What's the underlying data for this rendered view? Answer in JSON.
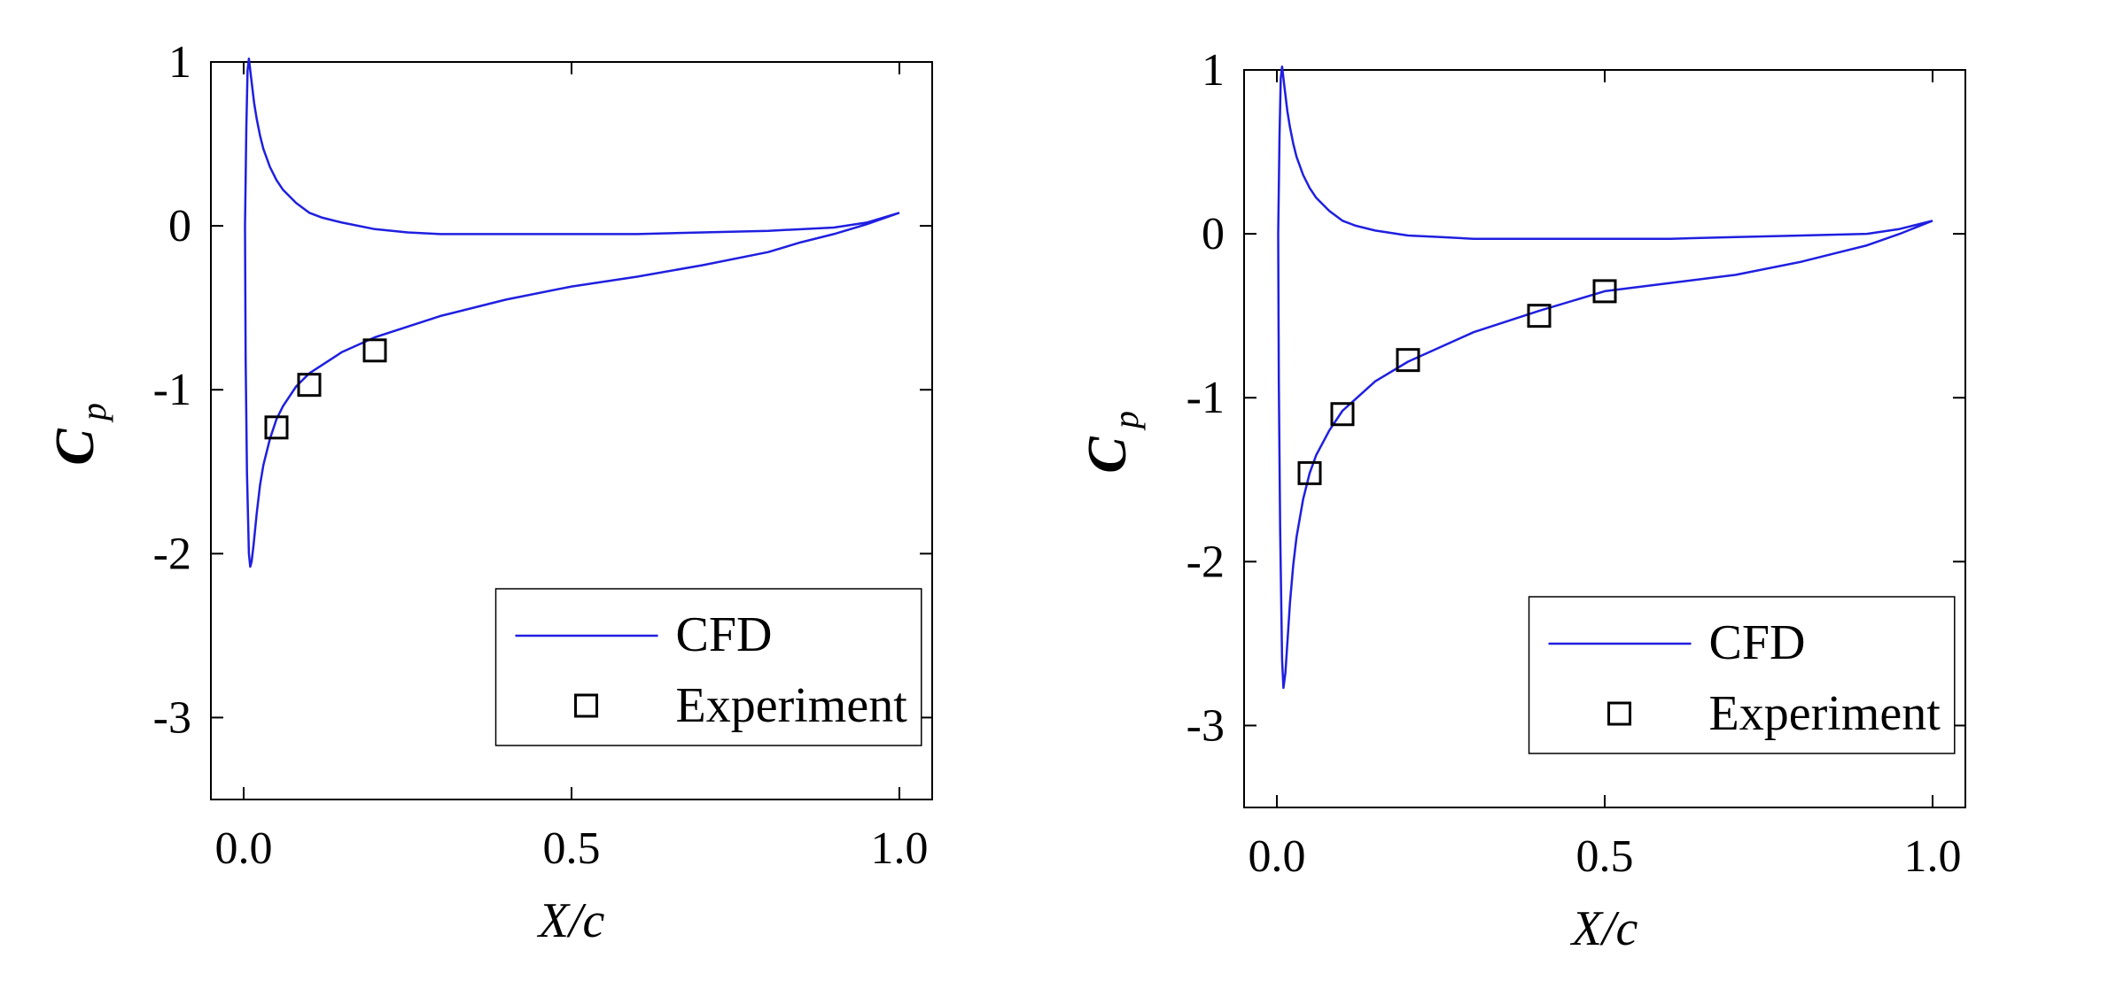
{
  "chart_data": [
    {
      "type": "line",
      "title": "",
      "xlabel": "X/c",
      "ylabel_main": "C",
      "ylabel_sub": "p",
      "xlim": [
        -0.05,
        1.05
      ],
      "ylim": [
        -3.5,
        1
      ],
      "xticks": [
        0.0,
        0.5,
        1.0
      ],
      "xtick_labels": [
        "0.0",
        "0.5",
        "1.0"
      ],
      "yticks": [
        1,
        0,
        -1,
        -2,
        -3
      ],
      "ytick_labels": [
        "1",
        "0",
        "-1",
        "-2",
        "-3"
      ],
      "legend": {
        "position": "bottom-right",
        "entries": [
          "CFD",
          "Experiment"
        ]
      },
      "series": [
        {
          "name": "CFD",
          "style": "line",
          "color": "#1f1fe0",
          "x": [
            1.0,
            0.95,
            0.9,
            0.85,
            0.8,
            0.7,
            0.6,
            0.5,
            0.4,
            0.3,
            0.2,
            0.15,
            0.1,
            0.08,
            0.06,
            0.05,
            0.04,
            0.03,
            0.025,
            0.02,
            0.015,
            0.012,
            0.01,
            0.008,
            0.005,
            0.003,
            0.002,
            0.004,
            0.006,
            0.008,
            0.01,
            0.013,
            0.016,
            0.02,
            0.025,
            0.03,
            0.04,
            0.05,
            0.06,
            0.08,
            0.1,
            0.12,
            0.15,
            0.2,
            0.25,
            0.3,
            0.35,
            0.4,
            0.5,
            0.6,
            0.7,
            0.8,
            0.9,
            0.95,
            1.0
          ],
          "y": [
            0.08,
            0.01,
            -0.05,
            -0.1,
            -0.16,
            -0.24,
            -0.31,
            -0.37,
            -0.45,
            -0.55,
            -0.68,
            -0.77,
            -0.9,
            -0.98,
            -1.1,
            -1.18,
            -1.3,
            -1.46,
            -1.58,
            -1.75,
            -1.95,
            -2.05,
            -2.08,
            -2.0,
            -1.5,
            -0.8,
            0.0,
            0.6,
            0.95,
            1.02,
            0.95,
            0.85,
            0.75,
            0.65,
            0.55,
            0.47,
            0.36,
            0.28,
            0.22,
            0.14,
            0.08,
            0.05,
            0.02,
            -0.02,
            -0.04,
            -0.05,
            -0.05,
            -0.05,
            -0.05,
            -0.05,
            -0.04,
            -0.03,
            -0.01,
            0.02,
            0.08
          ]
        },
        {
          "name": "Experiment",
          "style": "marker",
          "marker": "square",
          "x": [
            0.05,
            0.1,
            0.2
          ],
          "y": [
            -1.23,
            -0.97,
            -0.76
          ]
        }
      ]
    },
    {
      "type": "line",
      "title": "",
      "xlabel": "X/c",
      "ylabel_main": "C",
      "ylabel_sub": "p",
      "xlim": [
        -0.05,
        1.05
      ],
      "ylim": [
        -3.5,
        1
      ],
      "xticks": [
        0.0,
        0.5,
        1.0
      ],
      "xtick_labels": [
        "0.0",
        "0.5",
        "1.0"
      ],
      "yticks": [
        1,
        0,
        -1,
        -2,
        -3
      ],
      "ytick_labels": [
        "1",
        "0",
        "-1",
        "-2",
        "-3"
      ],
      "legend": {
        "position": "bottom-right",
        "entries": [
          "CFD",
          "Experiment"
        ]
      },
      "series": [
        {
          "name": "CFD",
          "style": "line",
          "color": "#1f1fe0",
          "x": [
            1.0,
            0.95,
            0.9,
            0.85,
            0.8,
            0.7,
            0.6,
            0.5,
            0.4,
            0.3,
            0.2,
            0.15,
            0.1,
            0.08,
            0.06,
            0.05,
            0.04,
            0.03,
            0.025,
            0.02,
            0.016,
            0.013,
            0.01,
            0.008,
            0.005,
            0.003,
            0.002,
            0.004,
            0.006,
            0.008,
            0.01,
            0.013,
            0.016,
            0.02,
            0.025,
            0.03,
            0.04,
            0.05,
            0.06,
            0.08,
            0.1,
            0.12,
            0.15,
            0.2,
            0.25,
            0.3,
            0.35,
            0.4,
            0.5,
            0.6,
            0.7,
            0.8,
            0.9,
            0.95,
            1.0
          ],
          "y": [
            0.08,
            0.0,
            -0.07,
            -0.12,
            -0.17,
            -0.25,
            -0.3,
            -0.35,
            -0.47,
            -0.6,
            -0.78,
            -0.9,
            -1.08,
            -1.2,
            -1.35,
            -1.46,
            -1.62,
            -1.85,
            -2.02,
            -2.25,
            -2.5,
            -2.68,
            -2.77,
            -2.6,
            -1.8,
            -0.9,
            0.0,
            0.6,
            0.95,
            1.02,
            0.95,
            0.85,
            0.75,
            0.65,
            0.55,
            0.47,
            0.36,
            0.28,
            0.22,
            0.14,
            0.08,
            0.05,
            0.02,
            -0.01,
            -0.02,
            -0.03,
            -0.03,
            -0.03,
            -0.03,
            -0.03,
            -0.02,
            -0.01,
            0.0,
            0.03,
            0.08
          ]
        },
        {
          "name": "Experiment",
          "style": "marker",
          "marker": "square",
          "x": [
            0.05,
            0.1,
            0.2,
            0.4,
            0.5
          ],
          "y": [
            -1.46,
            -1.1,
            -0.77,
            -0.5,
            -0.35
          ]
        }
      ]
    }
  ]
}
